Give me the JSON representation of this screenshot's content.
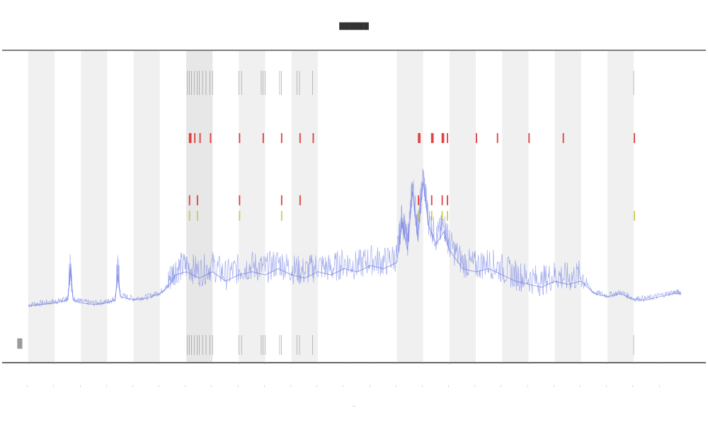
{
  "chart_data": {
    "type": "line",
    "title": "██████",
    "xlabel": "—",
    "ylabel": "",
    "legend_text": "████",
    "grid": true,
    "legend_position": "bottom-left",
    "x_tick_labels": [
      "—",
      "—",
      "—",
      "—",
      "—",
      "—",
      "—",
      "—",
      "—",
      "—",
      "—",
      "—",
      "—",
      "—",
      "—",
      "—",
      "—",
      "—",
      "—",
      "—",
      "—",
      "—",
      "—",
      "—",
      "—"
    ],
    "x_domain": [
      0,
      24.8
    ],
    "y_domain": [
      0,
      100
    ],
    "shaded_bands": [
      [
        0,
        1
      ],
      [
        2,
        3
      ],
      [
        4,
        5
      ],
      [
        6,
        7
      ],
      [
        8,
        9
      ],
      [
        10,
        11
      ],
      [
        14,
        15
      ],
      [
        16,
        17
      ],
      [
        18,
        19
      ],
      [
        20,
        21
      ],
      [
        22,
        23
      ]
    ],
    "highlight_region": [
      6.0,
      7.0
    ],
    "series": [
      {
        "color": "#5b6be0",
        "values": [
          [
            0.0,
            18
          ],
          [
            0.5,
            18.5
          ],
          [
            1.0,
            19
          ],
          [
            1.3,
            19.5
          ],
          [
            1.5,
            20
          ],
          [
            1.6,
            30
          ],
          [
            1.7,
            20
          ],
          [
            2.0,
            19
          ],
          [
            2.5,
            18.5
          ],
          [
            3.0,
            19
          ],
          [
            3.3,
            20
          ],
          [
            3.4,
            28
          ],
          [
            3.5,
            21
          ],
          [
            4.0,
            20
          ],
          [
            4.5,
            20.5
          ],
          [
            5.0,
            22
          ],
          [
            5.3,
            24
          ],
          [
            5.6,
            28
          ],
          [
            6.0,
            29
          ],
          [
            6.5,
            27
          ],
          [
            7.0,
            29
          ],
          [
            7.5,
            26
          ],
          [
            8.0,
            28
          ],
          [
            8.5,
            29
          ],
          [
            9.0,
            28
          ],
          [
            9.5,
            30
          ],
          [
            10.0,
            28
          ],
          [
            10.5,
            27
          ],
          [
            11.0,
            29
          ],
          [
            11.5,
            28
          ],
          [
            12.0,
            30
          ],
          [
            12.5,
            29
          ],
          [
            13.0,
            31
          ],
          [
            13.5,
            30
          ],
          [
            14.0,
            32
          ],
          [
            14.2,
            45
          ],
          [
            14.4,
            36
          ],
          [
            14.6,
            55
          ],
          [
            14.8,
            40
          ],
          [
            15.0,
            58
          ],
          [
            15.2,
            44
          ],
          [
            15.5,
            38
          ],
          [
            15.8,
            42
          ],
          [
            16.0,
            36
          ],
          [
            16.5,
            30
          ],
          [
            17.0,
            29
          ],
          [
            17.5,
            30
          ],
          [
            18.0,
            28
          ],
          [
            18.5,
            26
          ],
          [
            19.0,
            25
          ],
          [
            19.5,
            24
          ],
          [
            20.0,
            26
          ],
          [
            20.5,
            25
          ],
          [
            21.0,
            26
          ],
          [
            21.5,
            22
          ],
          [
            22.0,
            21
          ],
          [
            22.5,
            22
          ],
          [
            23.0,
            20
          ],
          [
            23.5,
            20
          ],
          [
            24.0,
            21
          ],
          [
            24.5,
            22
          ],
          [
            24.8,
            22
          ]
        ]
      }
    ],
    "thresholds": [
      {
        "color": "#dd2222",
        "level": 72,
        "segments": [
          [
            6.1,
            6.2
          ],
          [
            6.3,
            6.35
          ],
          [
            6.5,
            6.55
          ],
          [
            6.9,
            6.95
          ],
          [
            8.0,
            8.05
          ],
          [
            8.9,
            8.95
          ],
          [
            9.6,
            9.65
          ],
          [
            10.3,
            10.35
          ],
          [
            10.8,
            10.85
          ],
          [
            14.8,
            14.9
          ],
          [
            15.3,
            15.4
          ],
          [
            15.7,
            15.8
          ],
          [
            15.9,
            15.95
          ],
          [
            17.0,
            17.05
          ],
          [
            17.8,
            17.85
          ],
          [
            19.0,
            19.05
          ],
          [
            20.3,
            20.35
          ],
          [
            23.0,
            23.05
          ]
        ]
      },
      {
        "color": "#dd2222",
        "level": 52,
        "segments": [
          [
            6.1,
            6.15
          ],
          [
            6.4,
            6.45
          ],
          [
            8.0,
            8.05
          ],
          [
            9.6,
            9.65
          ],
          [
            10.3,
            10.35
          ],
          [
            14.8,
            14.85
          ],
          [
            15.3,
            15.35
          ],
          [
            15.7,
            15.75
          ],
          [
            15.9,
            15.95
          ]
        ]
      },
      {
        "color": "#c9c24a",
        "level": 47,
        "segments": [
          [
            6.1,
            6.15
          ],
          [
            6.4,
            6.45
          ],
          [
            8.0,
            8.05
          ],
          [
            9.6,
            9.65
          ],
          [
            14.8,
            14.85
          ],
          [
            15.3,
            15.35
          ],
          [
            15.7,
            15.75
          ],
          [
            15.9,
            15.95
          ],
          [
            23.0,
            23.05
          ]
        ]
      }
    ],
    "rug_top": [
      6.05,
      6.12,
      6.2,
      6.3,
      6.42,
      6.5,
      6.62,
      6.75,
      6.9,
      7.0,
      8.0,
      8.1,
      8.85,
      8.92,
      9.0,
      9.55,
      9.62,
      10.2,
      10.3,
      10.8,
      23.0
    ],
    "rug_bottom": [
      6.05,
      6.12,
      6.2,
      6.3,
      6.42,
      6.5,
      6.62,
      6.75,
      6.9,
      7.0,
      8.0,
      8.1,
      8.85,
      8.92,
      9.0,
      9.55,
      9.62,
      10.2,
      10.3,
      10.8,
      23.0
    ]
  }
}
